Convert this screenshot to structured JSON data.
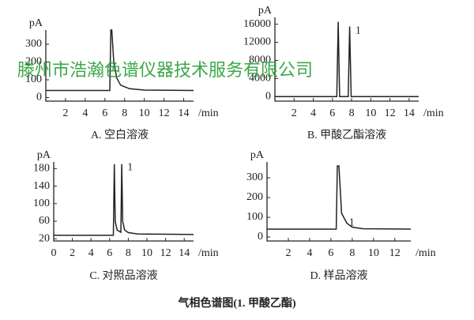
{
  "chart_data": [
    {
      "type": "line",
      "caption": "A. 空白溶液",
      "y_label": "pA",
      "x_label": "/min",
      "xlim": [
        0,
        15
      ],
      "ylim": [
        -20,
        380
      ],
      "xticks": [
        2,
        4,
        6,
        8,
        10,
        12,
        14
      ],
      "yticks": [
        0,
        100,
        200,
        300
      ],
      "series": [
        {
          "color": "#222222",
          "x": [
            0,
            6.5,
            6.6,
            6.7,
            6.9,
            7.2,
            7.6,
            8.5,
            10,
            15
          ],
          "values": [
            40,
            40,
            380,
            380,
            200,
            110,
            70,
            50,
            42,
            40
          ]
        }
      ]
    },
    {
      "type": "line",
      "caption": "B. 甲酸乙酯溶液",
      "y_label": "pA",
      "x_label": "/min",
      "xlim": [
        0,
        15
      ],
      "ylim": [
        -1000,
        17500
      ],
      "xticks": [
        2,
        4,
        6,
        8,
        10,
        12,
        14
      ],
      "yticks": [
        0,
        4000,
        8000,
        12000,
        16000
      ],
      "series": [
        {
          "color": "#222222",
          "x": [
            0,
            6.45,
            6.6,
            6.75,
            7.65,
            7.8,
            7.95,
            15
          ],
          "values": [
            0,
            0,
            16500,
            0,
            0,
            15500,
            0,
            0
          ]
        }
      ],
      "annotations": [
        {
          "text": "1",
          "x": 8.4,
          "y": 14500
        }
      ]
    },
    {
      "type": "line",
      "caption": "C. 对照品溶液",
      "y_label": "pA",
      "x_label": "/min",
      "xlim": [
        0,
        15
      ],
      "ylim": [
        15,
        195
      ],
      "xticks": [
        0,
        2,
        4,
        6,
        8,
        10,
        12,
        14
      ],
      "yticks": [
        20,
        60,
        100,
        140,
        180
      ],
      "series": [
        {
          "color": "#222222",
          "x": [
            0,
            6.4,
            6.5,
            6.6,
            6.8,
            7.2,
            7.3,
            7.4,
            7.6,
            8,
            9,
            15
          ],
          "values": [
            28,
            28,
            190,
            60,
            40,
            35,
            190,
            60,
            40,
            34,
            31,
            30
          ]
        }
      ],
      "annotations": [
        {
          "text": "1",
          "x": 7.9,
          "y": 182
        }
      ]
    },
    {
      "type": "line",
      "caption": "D. 样品溶液",
      "y_label": "pA",
      "x_label": "/min",
      "xlim": [
        0,
        13.5
      ],
      "ylim": [
        -20,
        380
      ],
      "xticks": [
        2,
        4,
        6,
        8,
        10,
        12
      ],
      "yticks": [
        0,
        100,
        200,
        300
      ],
      "series": [
        {
          "color": "#222222",
          "x": [
            0,
            6.5,
            6.6,
            6.75,
            7,
            7.5,
            8,
            9,
            13.5
          ],
          "values": [
            40,
            40,
            360,
            360,
            120,
            70,
            50,
            42,
            40
          ]
        }
      ],
      "annotations": [
        {
          "text": "1",
          "x": 7.7,
          "y": 70
        }
      ]
    }
  ],
  "figure_caption": "气相色谱图(1. 甲酸乙酯)",
  "watermark": "滕州市浩瀚色谱仪器技术服务有限公司"
}
